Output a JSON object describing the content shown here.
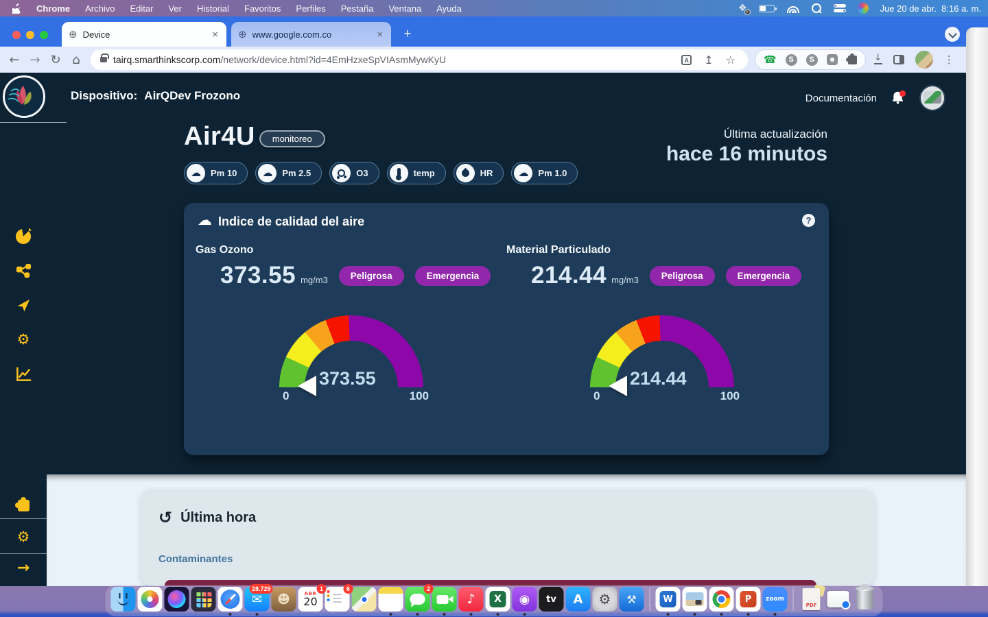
{
  "menu_bar": {
    "items": [
      "Chrome",
      "Archivo",
      "Editar",
      "Ver",
      "Historial",
      "Favoritos",
      "Perfiles",
      "Pestaña",
      "Ventana",
      "Ayuda"
    ],
    "clock": "Jue 20 de abr.  8:16 a. m."
  },
  "browser": {
    "tabs": [
      {
        "title": "Device"
      },
      {
        "title": "www.google.com.co"
      }
    ],
    "url_host": "tairq.smarthinkscorp.com",
    "url_path": "/network/device.html?id=4EmHzxeSpVIAsmMywKyU"
  },
  "app": {
    "header": {
      "device_label": "Dispositivo:",
      "device_name": "AirQDev Frozono",
      "docs_label": "Documentación"
    },
    "device_title": "Air4U",
    "mode_badge": "monitoreo",
    "sensors": [
      {
        "label": "Pm 10",
        "icon": "cloud"
      },
      {
        "label": "Pm 2.5",
        "icon": "cloud"
      },
      {
        "label": "O3",
        "icon": "molecule"
      },
      {
        "label": "temp",
        "icon": "thermometer"
      },
      {
        "label": "HR",
        "icon": "water-drop"
      },
      {
        "label": "Pm 1.0",
        "icon": "cloud"
      }
    ],
    "last_update_label": "Última actualización",
    "last_update_value": "hace 16 minutos",
    "aqi_card": {
      "title": "Indice de calidad del aire",
      "help_label": "?",
      "scale_colors": [
        "#5fc22e",
        "#f5ee1f",
        "#f7a41c",
        "#f61300",
        "#8e07a8"
      ],
      "gauges": [
        {
          "name": "Gas Ozono",
          "value": "373.55",
          "unit": "mg/m3",
          "badges": [
            "Peligrosa",
            "Emergencia"
          ],
          "min": "0",
          "max": "100"
        },
        {
          "name": "Material Particulado",
          "value": "214.44",
          "unit": "mg/m3",
          "badges": [
            "Peligrosa",
            "Emergencia"
          ],
          "min": "0",
          "max": "100"
        }
      ]
    },
    "history_card": {
      "title": "Última hora",
      "link": "Contaminantes"
    }
  },
  "colors": {
    "accent_yellow": "#fcc21b",
    "badge_purple": "#9227ac",
    "page_bg": "#0d2334",
    "card_bg": "#1e3c59"
  },
  "dock": {
    "items": [
      {
        "id": "finder",
        "name": "Finder",
        "dot": true
      },
      {
        "id": "photos",
        "name": "Photos"
      },
      {
        "id": "siri",
        "name": "Siri"
      },
      {
        "id": "launchpad",
        "name": "Launchpad"
      },
      {
        "id": "safari",
        "name": "Safari",
        "dot": true
      },
      {
        "id": "mail",
        "name": "Mail",
        "glyph": "✉",
        "badge": "28.729",
        "dot": true
      },
      {
        "id": "contacts",
        "name": "Contacts",
        "glyph": "☻"
      },
      {
        "id": "calendar",
        "name": "Calendar",
        "cal_month": "ABR",
        "cal_day": "20",
        "badge": "1"
      },
      {
        "id": "reminders",
        "name": "Reminders",
        "glyph": "☰",
        "badge": "6"
      },
      {
        "id": "maps",
        "name": "Maps"
      },
      {
        "id": "notes",
        "name": "Notes",
        "dot": true
      },
      {
        "id": "messages",
        "name": "Messages",
        "badge": "2",
        "dot": true
      },
      {
        "id": "facetime",
        "name": "FaceTime",
        "dot": true
      },
      {
        "id": "music",
        "name": "Music",
        "glyph": "♪",
        "dot": true
      },
      {
        "id": "excel",
        "name": "Excel",
        "glyph": "X",
        "dot": true
      },
      {
        "id": "podcasts",
        "name": "Podcasts",
        "glyph": "◉",
        "dot": true
      },
      {
        "id": "appletv",
        "name": "Apple TV",
        "glyph": "tv"
      },
      {
        "id": "appstore",
        "name": "App Store",
        "glyph": "A"
      },
      {
        "id": "settings",
        "name": "System Settings",
        "glyph": "⚙"
      },
      {
        "id": "remotedesktop",
        "name": "Remote Desktop",
        "glyph": "⚒"
      },
      {
        "id": "sep"
      },
      {
        "id": "word",
        "name": "Word",
        "glyph": "W",
        "dot": true
      },
      {
        "id": "preview",
        "name": "Preview",
        "dot": true
      },
      {
        "id": "chrome",
        "name": "Chrome",
        "dot": true
      },
      {
        "id": "powerpoint",
        "name": "PowerPoint",
        "glyph": "P",
        "dot": true
      },
      {
        "id": "zoom",
        "name": "Zoom",
        "glyph": "zoom",
        "dot": true
      },
      {
        "id": "sep"
      },
      {
        "id": "pdf",
        "name": "PDF Document",
        "glyph": "PDF"
      },
      {
        "id": "window",
        "name": "Minimized Window"
      },
      {
        "id": "trash",
        "name": "Trash"
      }
    ]
  }
}
